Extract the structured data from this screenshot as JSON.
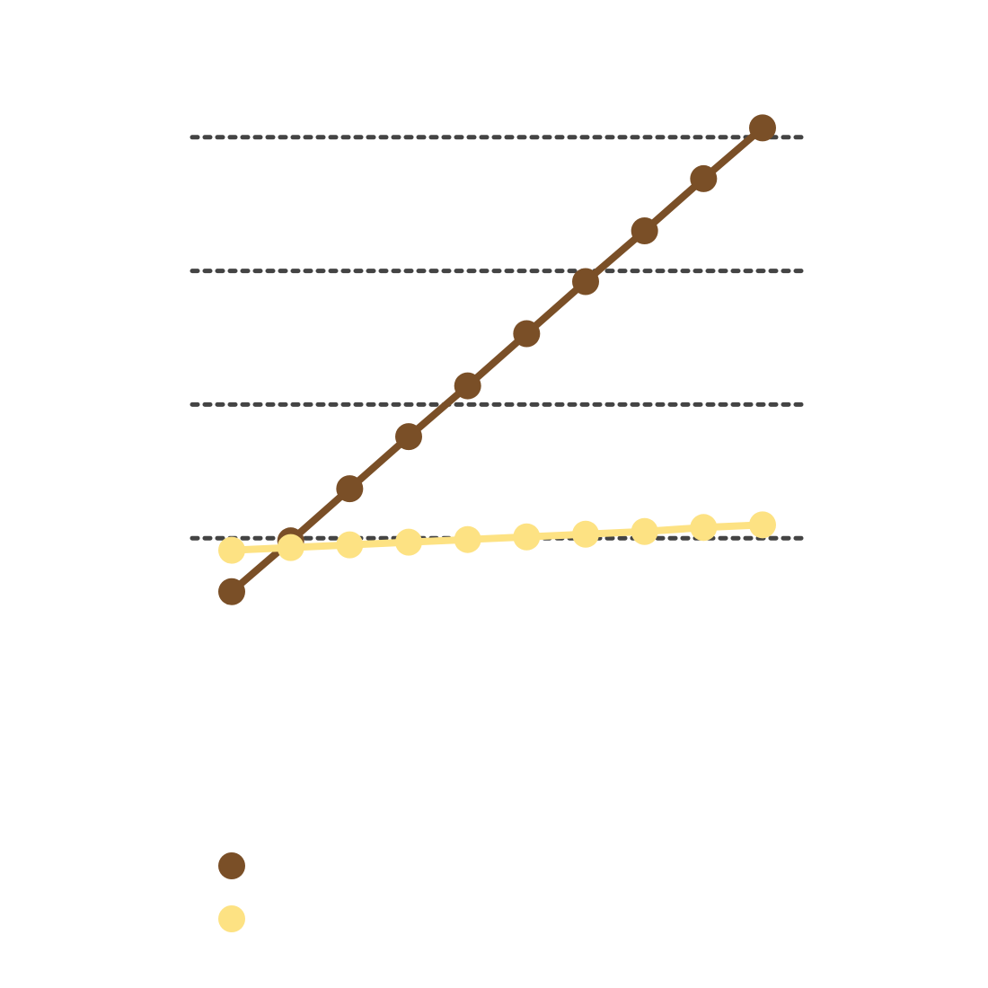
{
  "colors": {
    "background": "#ffffff",
    "grid": "#444444",
    "series_brown": "#7a4f27",
    "series_yellow": "#fde283"
  },
  "chart_data": {
    "type": "line",
    "title": "",
    "xlabel": "",
    "ylabel": "",
    "x": [
      1,
      2,
      3,
      4,
      5,
      6,
      7,
      8,
      9,
      10
    ],
    "ylim": [
      0,
      4
    ],
    "gridlines": [
      1,
      2,
      3,
      4
    ],
    "grid": true,
    "grid_style": "dotted",
    "legend_position": "bottom-left",
    "series": [
      {
        "color_key": "series_brown",
        "values": [
          0.6,
          0.98,
          1.37,
          1.76,
          2.14,
          2.53,
          2.92,
          3.3,
          3.69,
          4.07
        ]
      },
      {
        "color_key": "series_yellow",
        "values": [
          0.91,
          0.93,
          0.95,
          0.97,
          0.99,
          1.01,
          1.03,
          1.05,
          1.08,
          1.1
        ]
      }
    ]
  }
}
